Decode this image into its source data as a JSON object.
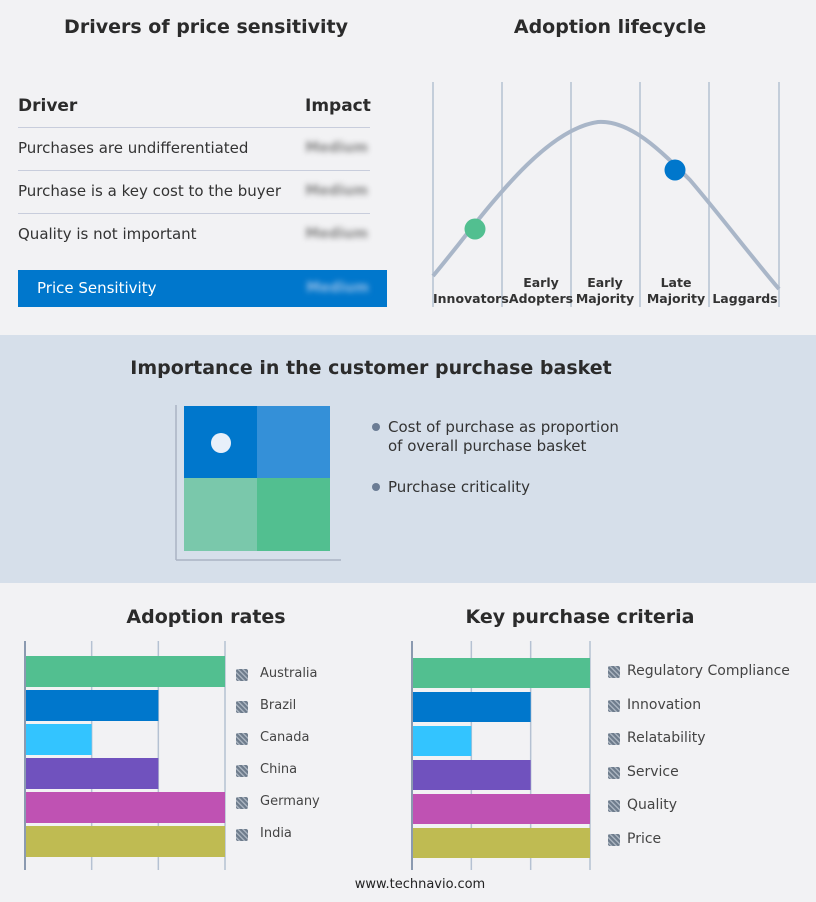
{
  "drivers": {
    "title": "Drivers of price sensitivity",
    "col_driver": "Driver",
    "col_impact": "Impact",
    "rows": [
      {
        "driver": "Purchases are undifferentiated",
        "impact": "Medium"
      },
      {
        "driver": "Purchase is a key cost to the buyer",
        "impact": "Medium"
      },
      {
        "driver": "Quality is not important",
        "impact": "Medium"
      }
    ],
    "summary": {
      "label": "Price Sensitivity",
      "impact": "Medium"
    },
    "accent": "#0077cc"
  },
  "lifecycle": {
    "title": "Adoption lifecycle",
    "stages": [
      "Innovators",
      "Early Adopters",
      "Early Majority",
      "Late Majority",
      "Laggards"
    ],
    "markers": [
      {
        "stage": "Innovators",
        "color": "#52bf90"
      },
      {
        "stage": "Late Majority",
        "color": "#0077cc"
      }
    ]
  },
  "basket": {
    "title": "Importance in the customer purchase basket",
    "bullets": [
      "Cost of purchase as proportion of overall purchase basket",
      "Purchase criticality"
    ],
    "matrix_colors": [
      "#0077cc",
      "#3490d8",
      "#7ac8ab",
      "#52bf90"
    ],
    "marker_cell": "top-left"
  },
  "chart_data": [
    {
      "type": "bar",
      "orientation": "horizontal",
      "title": "Adoption rates",
      "categories": [
        "Australia",
        "Brazil",
        "Canada",
        "China",
        "Germany",
        "India"
      ],
      "values": [
        3,
        2,
        1,
        2,
        3,
        3
      ],
      "colors": [
        "#52bf90",
        "#0077cc",
        "#33c4ff",
        "#7052be",
        "#bf52b3",
        "#bfbb52"
      ],
      "xlim": [
        0,
        3
      ],
      "grid": true,
      "legend": "right"
    },
    {
      "type": "bar",
      "orientation": "horizontal",
      "title": "Key purchase criteria",
      "categories": [
        "Regulatory Compliance",
        "Innovation",
        "Relatability",
        "Service",
        "Quality",
        "Price"
      ],
      "values": [
        3,
        2,
        1,
        2,
        3,
        3
      ],
      "colors": [
        "#52bf90",
        "#0077cc",
        "#33c4ff",
        "#7052be",
        "#bf52b3",
        "#bfbb52"
      ],
      "xlim": [
        0,
        3
      ],
      "grid": true,
      "legend": "right"
    }
  ],
  "footer": "www.technavio.com"
}
